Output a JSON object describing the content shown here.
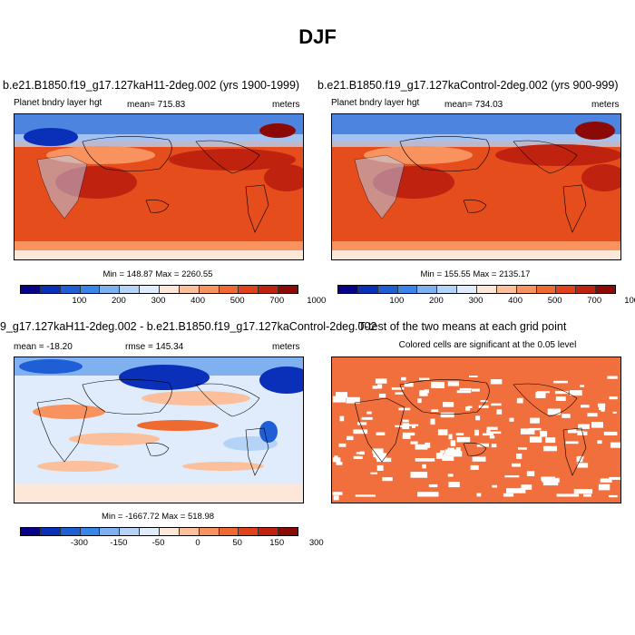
{
  "title": "DJF",
  "panels": [
    {
      "title": "b.e21.B1850.f19_g17.127kaH11-2deg.002 (yrs 1900-1999)",
      "left": "Planet bndry layer hgt",
      "center": "mean= 715.83",
      "right": "meters",
      "stats": "Min = 148.87 Max = 2260.55"
    },
    {
      "title": "b.e21.B1850.f19_g17.127kaControl-2deg.002 (yrs 900-999)",
      "left": "Planet bndry layer hgt",
      "center": "mean= 734.03",
      "right": "meters",
      "stats": "Min = 155.55 Max = 2135.17"
    },
    {
      "title": "9_g17.127kaH11-2deg.002 - b.e21.B1850.f19_g17.127kaControl-2deg.002",
      "left": "mean = -18.20",
      "center": "rmse = 145.34",
      "right": "meters",
      "stats": "Min = -1667.72 Max = 518.98"
    },
    {
      "title": "T-test of the two means at each grid point",
      "subtitle": "Colored cells are significant at the 0.05 level"
    }
  ],
  "colorbars": {
    "abs": {
      "colors": [
        "#08028a",
        "#0a2fb8",
        "#1f5fd6",
        "#3a86e8",
        "#7fb0f0",
        "#b5d3f7",
        "#e0ecfb",
        "#fde7d8",
        "#fbbf9c",
        "#f8935f",
        "#ef6a30",
        "#e0421b",
        "#c02210",
        "#8c0a05"
      ],
      "labels": [
        "100",
        "200",
        "300",
        "400",
        "500",
        "700",
        "1000"
      ]
    },
    "diff": {
      "colors": [
        "#08028a",
        "#0a2fb8",
        "#1f5fd6",
        "#3a86e8",
        "#7fb0f0",
        "#b5d3f7",
        "#e0ecfb",
        "#fde7d8",
        "#fbbf9c",
        "#f8935f",
        "#ef6a30",
        "#e0421b",
        "#c02210",
        "#8c0a05"
      ],
      "labels": [
        "-300",
        "-150",
        "-50",
        "0",
        "50",
        "150",
        "300"
      ]
    }
  },
  "colors": {
    "ocean_abs": "#e8521f",
    "ttest": "#f06f3c"
  }
}
